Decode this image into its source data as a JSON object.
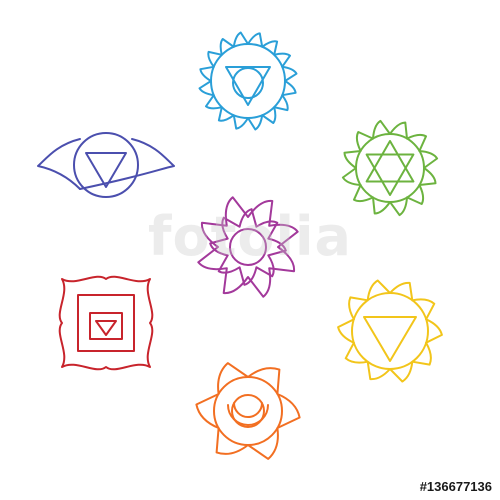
{
  "watermark": "fotolia",
  "stock_id": "#136677136",
  "colors": {
    "throat": "#2a9fd8",
    "third_eye": "#4b4fae",
    "heart": "#6cb33f",
    "crown": "#a3399b",
    "root": "#c8242c",
    "solar_plexus": "#f2c51a",
    "sacral": "#f26f22"
  },
  "symbols": [
    {
      "name": "throat-chakra",
      "icon": "throat-chakra-icon",
      "color_key": "throat"
    },
    {
      "name": "third-eye-chakra",
      "icon": "third-eye-chakra-icon",
      "color_key": "third_eye"
    },
    {
      "name": "heart-chakra",
      "icon": "heart-chakra-icon",
      "color_key": "heart"
    },
    {
      "name": "crown-chakra",
      "icon": "crown-chakra-icon",
      "color_key": "crown"
    },
    {
      "name": "root-chakra",
      "icon": "root-chakra-icon",
      "color_key": "root"
    },
    {
      "name": "solar-plexus-chakra",
      "icon": "solar-plexus-chakra-icon",
      "color_key": "solar_plexus"
    },
    {
      "name": "sacral-chakra",
      "icon": "sacral-chakra-icon",
      "color_key": "sacral"
    }
  ]
}
